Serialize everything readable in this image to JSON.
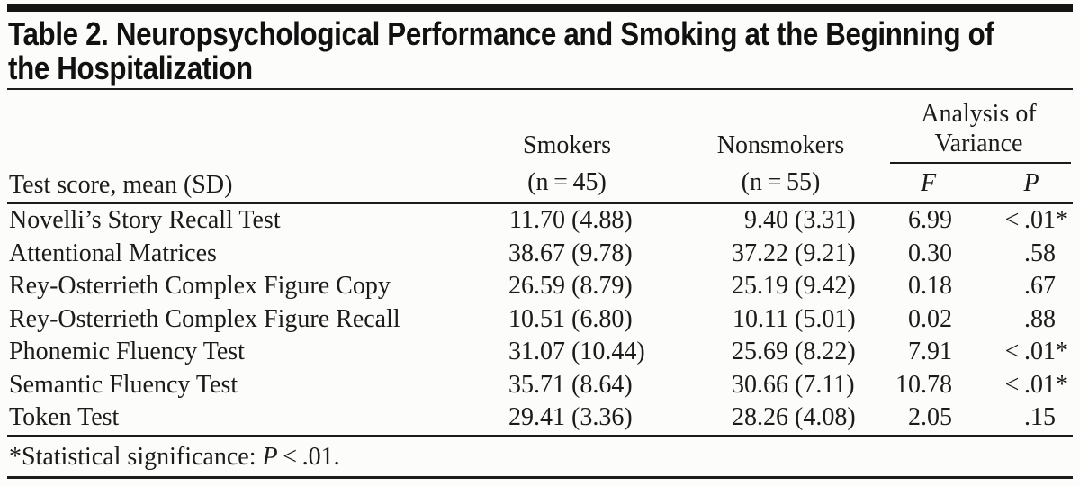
{
  "title": {
    "line1": "Table 2. Neuropsychological Performance and Smoking at the Beginning of",
    "line2": "the Hospitalization"
  },
  "table": {
    "row_header_label": "Test score, mean (SD)",
    "col_groups": {
      "smokers": {
        "label": "Smokers",
        "n": "(n = 45)"
      },
      "nonsmokers": {
        "label": "Nonsmokers",
        "n": "(n = 55)"
      },
      "anova": {
        "label": "Analysis of Variance",
        "f_label": "F",
        "p_label": "P"
      }
    },
    "sig_marker": "*",
    "rows": [
      {
        "name": "Novelli’s Story Recall Test",
        "smokers": "11.70 (4.88)",
        "nonsmokers": "9.40 (3.31)",
        "f": "6.99",
        "p": "< .01",
        "sig": true
      },
      {
        "name": "Attentional Matrices",
        "smokers": "38.67 (9.78)",
        "nonsmokers": "37.22 (9.21)",
        "f": "0.30",
        "p": ".58",
        "sig": false
      },
      {
        "name": "Rey-Osterrieth Complex Figure Copy",
        "smokers": "26.59 (8.79)",
        "nonsmokers": "25.19 (9.42)",
        "f": "0.18",
        "p": ".67",
        "sig": false
      },
      {
        "name": "Rey-Osterrieth Complex Figure Recall",
        "smokers": "10.51 (6.80)",
        "nonsmokers": "10.11 (5.01)",
        "f": "0.02",
        "p": ".88",
        "sig": false
      },
      {
        "name": "Phonemic Fluency Test",
        "smokers": "31.07 (10.44)",
        "nonsmokers": "25.69 (8.22)",
        "f": "7.91",
        "p": "< .01",
        "sig": true
      },
      {
        "name": "Semantic Fluency Test",
        "smokers": "35.71 (8.64)",
        "nonsmokers": "30.66 (7.11)",
        "f": "10.78",
        "p": "< .01",
        "sig": true
      },
      {
        "name": "Token Test",
        "smokers": "29.41 (3.36)",
        "nonsmokers": "28.26 (4.08)",
        "f": "2.05",
        "p": ".15",
        "sig": false
      }
    ]
  },
  "footnote": {
    "marker": "*",
    "text": "Statistical significance: ",
    "p_symbol": "P",
    "comparison": " < .01."
  },
  "colors": {
    "ink": "#1b1b1b",
    "rule": "#1c1c1c",
    "background": "#fcfcfa"
  }
}
